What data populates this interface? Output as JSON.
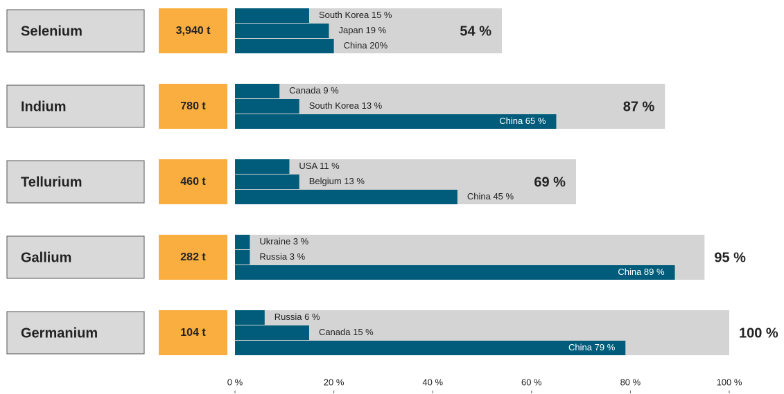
{
  "chart_data": {
    "type": "bar",
    "groups": [
      {
        "name": "Selenium",
        "production": 3940,
        "production_label": "3,940 t",
        "total": 54,
        "total_label": "54 %",
        "countries": [
          "South Korea",
          "Japan",
          "China"
        ],
        "values": [
          15,
          19,
          20
        ],
        "value_labels": [
          "15 %",
          "19 %",
          "20%"
        ]
      },
      {
        "name": "Indium",
        "production": 780,
        "production_label": "780 t",
        "total": 87,
        "total_label": "87 %",
        "countries": [
          "Canada",
          "South Korea",
          "China"
        ],
        "values": [
          9,
          13,
          65
        ],
        "value_labels": [
          "9 %",
          "13 %",
          "65 %"
        ]
      },
      {
        "name": "Tellurium",
        "production": 460,
        "production_label": "460 t",
        "total": 69,
        "total_label": "69 %",
        "countries": [
          "USA",
          "Belgium",
          "China"
        ],
        "values": [
          11,
          13,
          45
        ],
        "value_labels": [
          "11 %",
          "13 %",
          "45 %"
        ]
      },
      {
        "name": "Gallium",
        "production": 282,
        "production_label": "282 t",
        "total": 95,
        "total_label": "95 %",
        "countries": [
          "Ukraine",
          "Russia",
          "China"
        ],
        "values": [
          3,
          3,
          89
        ],
        "value_labels": [
          "3 %",
          "3 %",
          "89 %"
        ]
      },
      {
        "name": "Germanium",
        "production": 104,
        "production_label": "104 t",
        "total": 100,
        "total_label": "100 %",
        "countries": [
          "Russia",
          "Canada",
          "China"
        ],
        "values": [
          6,
          15,
          79
        ],
        "value_labels": [
          "6 %",
          "15 %",
          "79 %"
        ]
      }
    ],
    "xlim": [
      0,
      100
    ],
    "xticks": [
      {
        "value": 0,
        "label": "0 %"
      },
      {
        "value": 20,
        "label": "20 %"
      },
      {
        "value": 40,
        "label": "40 %"
      },
      {
        "value": 60,
        "label": "60 %"
      },
      {
        "value": 80,
        "label": "80 %"
      },
      {
        "value": 100,
        "label": "100 %"
      }
    ],
    "bar_color": "#005c7a",
    "total_color": "#d4d4d4",
    "production_color": "#f9ae3f",
    "name_color": "#d9d9d9"
  }
}
